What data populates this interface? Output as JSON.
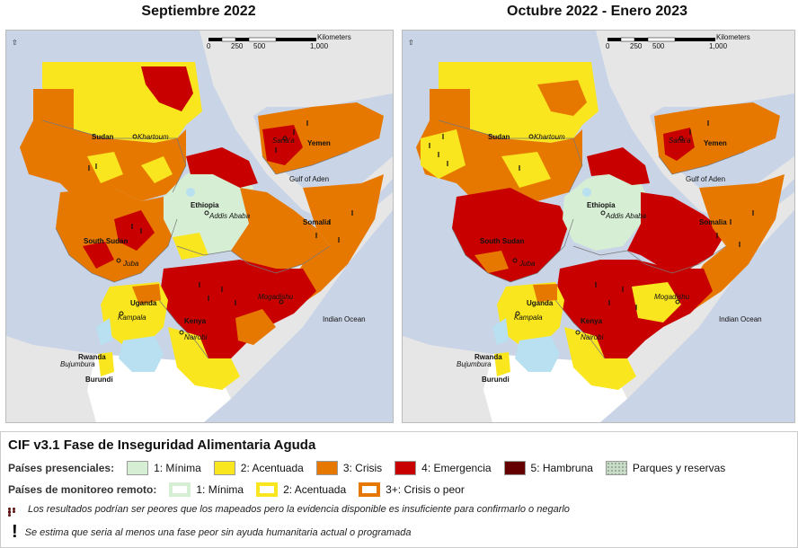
{
  "maps": {
    "left": {
      "title": "Septiembre 2022"
    },
    "right": {
      "title": "Octubre 2022 - Enero 2023"
    }
  },
  "scalebar": {
    "unit": "Kilometers",
    "ticks": [
      "0",
      "250",
      "500",
      "1,000"
    ]
  },
  "labels": {
    "sudan": "Sudan",
    "khartoum": "Khartoum",
    "yemen": "Yemen",
    "sanaa": "Sana'a",
    "gulf": "Gulf of Aden",
    "ethiopia": "Ethiopia",
    "addis": "Addis Ababa",
    "somalia": "Somalia",
    "south_sudan": "South Sudan",
    "juba": "Juba",
    "uganda": "Uganda",
    "kampala": "Kampala",
    "kenya": "Kenya",
    "nairobi": "Nairobi",
    "mogadishu": "Mogadishu",
    "indian_ocean": "Indian Ocean",
    "rwanda": "Rwanda",
    "bujumbura": "Bujumbura",
    "burundi": "Burundi"
  },
  "legend": {
    "title": "CIF v3.1 Fase de Inseguridad Alimentaria Aguda",
    "presencial_label": "Países presenciales:",
    "presencial": [
      {
        "label": "1: Mínima",
        "color": "#d6eed4"
      },
      {
        "label": "2: Acentuada",
        "color": "#fae61e"
      },
      {
        "label": "3: Crisis",
        "color": "#e67800"
      },
      {
        "label": "4: Emergencia",
        "color": "#c80000"
      },
      {
        "label": "5: Hambruna",
        "color": "#640000"
      },
      {
        "label": "Parques y reservas",
        "color": "#c8dcc8"
      }
    ],
    "remoto_label": "Países de monitoreo remoto:",
    "remoto": [
      {
        "label": "1: Mínima",
        "color": "#d6eed4"
      },
      {
        "label": "2: Acentuada",
        "color": "#fae61e"
      },
      {
        "label": "3+: Crisis o peor",
        "color": "#e67800"
      }
    ],
    "note_dots": "Los resultados podrían ser peores que los mapeados pero la evidencia disponible es insuficiente para confirmarlo o negarlo",
    "note_excl": "Se estima que seria al menos una fase peor sin ayuda humanitaria actual o programada"
  }
}
